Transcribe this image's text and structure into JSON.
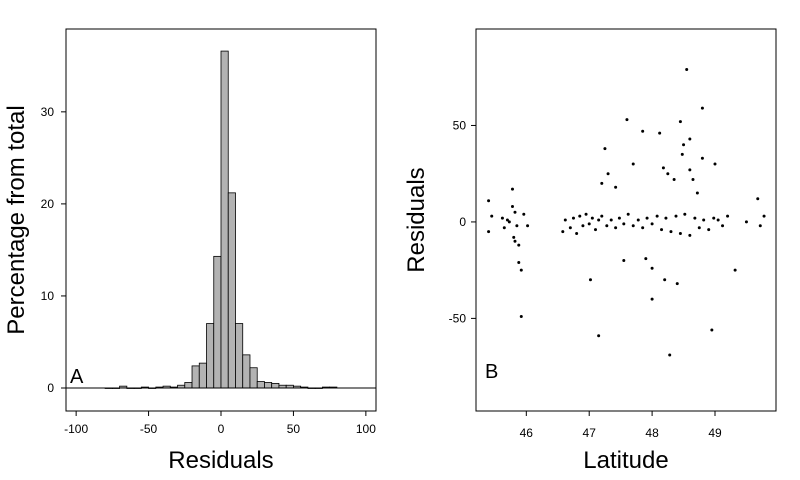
{
  "chart_data": [
    {
      "type": "bar",
      "panel_label": "A",
      "title": "",
      "xlabel": "Residuals",
      "ylabel": "Percentage from total",
      "xlim": [
        -107,
        107
      ],
      "ylim": [
        -2.5,
        39
      ],
      "xticks": [
        -100,
        -50,
        0,
        50,
        100
      ],
      "yticks": [
        0,
        10,
        20,
        30
      ],
      "bin_width": 5,
      "bin_start": -80,
      "values": [
        0,
        0,
        0.2,
        0,
        0,
        0.1,
        0,
        0.1,
        0.2,
        0.1,
        0.3,
        0.6,
        2.4,
        2.7,
        7.0,
        14.3,
        36.6,
        21.2,
        7.0,
        3.6,
        2.2,
        0.7,
        0.6,
        0.5,
        0.3,
        0.3,
        0.2,
        0.1,
        0,
        0,
        0.1,
        0.1
      ],
      "grid": false
    },
    {
      "type": "scatter",
      "panel_label": "B",
      "title": "",
      "xlabel": "Latitude",
      "ylabel": "Residuals",
      "xlim": [
        45.2,
        49.97
      ],
      "ylim": [
        -98,
        100
      ],
      "xticks": [
        46,
        47,
        48,
        49
      ],
      "yticks": [
        -50,
        0,
        50
      ],
      "grid": false,
      "marker_size": 1.5,
      "points_x": [
        45.4,
        45.4,
        45.45,
        45.62,
        45.65,
        45.7,
        45.73,
        45.78,
        45.82,
        45.88,
        45.92,
        45.96,
        46.02,
        45.8,
        45.82,
        45.88,
        45.92,
        45.85,
        45.78,
        46.58,
        46.62,
        46.7,
        46.75,
        46.8,
        46.85,
        46.9,
        46.95,
        47.0,
        47.05,
        47.1,
        47.15,
        47.2,
        47.28,
        47.35,
        47.42,
        47.48,
        47.55,
        47.62,
        47.7,
        47.78,
        47.85,
        47.92,
        48.0,
        48.08,
        48.15,
        48.22,
        48.3,
        48.38,
        48.45,
        48.52,
        48.6,
        48.68,
        48.75,
        48.82,
        48.9,
        48.98,
        49.05,
        49.12,
        49.2,
        49.32,
        49.5,
        49.68,
        49.72,
        49.78,
        47.25,
        48.45,
        48.55,
        48.8,
        48.12,
        47.15,
        47.6,
        47.85,
        48.6,
        48.35,
        47.42,
        48.0,
        48.28,
        48.95,
        49.0,
        48.72,
        48.2,
        47.02,
        47.3,
        48.48,
        48.18,
        47.9,
        48.0,
        47.55,
        48.6,
        48.8,
        48.5,
        48.4,
        47.2,
        48.25,
        47.7,
        48.65
      ],
      "points_y": [
        -5,
        11,
        3,
        2,
        -3,
        1,
        0,
        17,
        -10,
        -21,
        -25,
        4,
        -2,
        -8,
        5,
        -12,
        -49,
        -2,
        8,
        -5,
        1,
        -3,
        2,
        -6,
        3,
        -2,
        4,
        -1,
        2,
        -4,
        1,
        3,
        -2,
        1,
        -3,
        2,
        -1,
        4,
        -2,
        1,
        -3,
        2,
        -1,
        3,
        -4,
        2,
        -5,
        3,
        -6,
        4,
        -7,
        2,
        -3,
        1,
        -4,
        2,
        1,
        -2,
        3,
        -25,
        0,
        12,
        -2,
        3,
        38,
        52,
        79,
        59,
        46,
        -59,
        53,
        47,
        43,
        22,
        18,
        -40,
        -69,
        -56,
        30,
        15,
        -30,
        -30,
        25,
        35,
        28,
        -19,
        -24,
        -20,
        27,
        33,
        40,
        -32,
        20,
        25,
        30,
        22
      ]
    }
  ]
}
